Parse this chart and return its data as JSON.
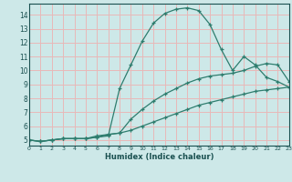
{
  "title": "",
  "xlabel": "Humidex (Indice chaleur)",
  "ylabel": "",
  "background_color": "#cde8e8",
  "grid_color": "#e8b8b8",
  "line_color": "#2e7d6e",
  "x_ticks": [
    0,
    1,
    2,
    3,
    4,
    5,
    6,
    7,
    8,
    9,
    10,
    11,
    12,
    13,
    14,
    15,
    16,
    17,
    18,
    19,
    20,
    21,
    22,
    23
  ],
  "y_ticks": [
    5,
    6,
    7,
    8,
    9,
    10,
    11,
    12,
    13,
    14
  ],
  "xlim": [
    0,
    23
  ],
  "ylim": [
    4.6,
    14.8
  ],
  "series": [
    {
      "x": [
        0,
        1,
        2,
        3,
        4,
        5,
        6,
        7,
        8,
        9,
        10,
        11,
        12,
        13,
        14,
        15,
        16,
        17,
        18,
        19,
        20,
        21,
        22,
        23
      ],
      "y": [
        5.0,
        4.9,
        5.0,
        5.1,
        5.1,
        5.1,
        5.2,
        5.3,
        8.7,
        10.4,
        12.1,
        13.4,
        14.1,
        14.4,
        14.5,
        14.3,
        13.3,
        11.5,
        10.0,
        11.0,
        10.4,
        9.5,
        9.2,
        8.8
      ]
    },
    {
      "x": [
        0,
        1,
        2,
        3,
        4,
        5,
        6,
        7,
        8,
        9,
        10,
        11,
        12,
        13,
        14,
        15,
        16,
        17,
        18,
        19,
        20,
        21,
        22,
        23
      ],
      "y": [
        5.0,
        4.9,
        5.0,
        5.1,
        5.1,
        5.1,
        5.2,
        5.4,
        5.5,
        6.5,
        7.2,
        7.8,
        8.3,
        8.7,
        9.1,
        9.4,
        9.6,
        9.7,
        9.8,
        10.0,
        10.3,
        10.5,
        10.4,
        9.2
      ]
    },
    {
      "x": [
        0,
        1,
        2,
        3,
        4,
        5,
        6,
        7,
        8,
        9,
        10,
        11,
        12,
        13,
        14,
        15,
        16,
        17,
        18,
        19,
        20,
        21,
        22,
        23
      ],
      "y": [
        5.0,
        4.9,
        5.0,
        5.1,
        5.1,
        5.1,
        5.3,
        5.4,
        5.5,
        5.7,
        6.0,
        6.3,
        6.6,
        6.9,
        7.2,
        7.5,
        7.7,
        7.9,
        8.1,
        8.3,
        8.5,
        8.6,
        8.7,
        8.8
      ]
    }
  ]
}
